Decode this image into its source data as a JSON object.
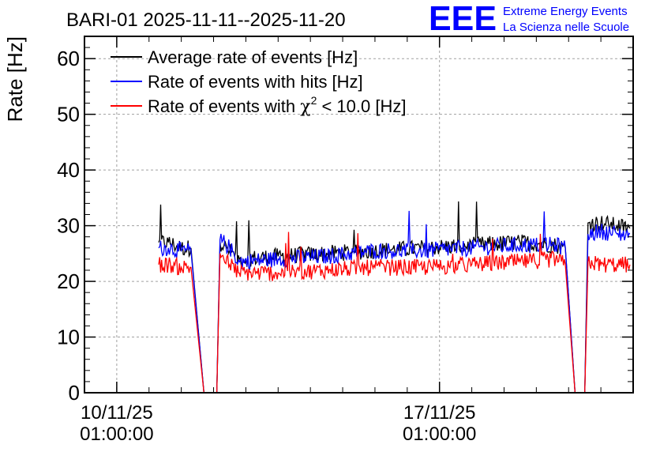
{
  "chart_data": {
    "type": "line",
    "title": "BARI-01 2025-11-11--2025-11-20",
    "ylabel": "Rate [Hz]",
    "xlabel": "",
    "ylim": [
      0,
      64
    ],
    "yticks": [
      0,
      10,
      20,
      30,
      40,
      50,
      60
    ],
    "xlim_days": [
      10.0,
      27.0
    ],
    "xticks": [
      {
        "day": 11.0,
        "label_date": "10/11/25",
        "label_time": "01:00:00"
      },
      {
        "day": 21.0,
        "label_date": "17/11/25",
        "label_time": "01:00:00"
      }
    ],
    "grid": true,
    "legend_position": "top-left",
    "legend": [
      {
        "key": "avg",
        "label": "Average rate of events [Hz]"
      },
      {
        "key": "hits",
        "label": "Rate of events with hits [Hz]"
      },
      {
        "key": "chi",
        "label_prefix": "Rate of events with ",
        "label_symbol": "χ",
        "label_sup": "2",
        "label_suffix": " < 10.0 [Hz]"
      }
    ],
    "series": [
      {
        "key": "avg",
        "name": "Average rate of events [Hz]",
        "color": "#000000",
        "points": [
          [
            12.3,
            27
          ],
          [
            12.6,
            27
          ],
          [
            13.0,
            26
          ],
          [
            13.3,
            26
          ],
          [
            13.7,
            0
          ],
          [
            14.1,
            0
          ],
          [
            14.2,
            27
          ],
          [
            14.5,
            25.5
          ],
          [
            14.8,
            24
          ],
          [
            16.0,
            24.5
          ],
          [
            17.5,
            25
          ],
          [
            19.0,
            25.5
          ],
          [
            20.5,
            26
          ],
          [
            22.0,
            26.5
          ],
          [
            23.5,
            27
          ],
          [
            24.6,
            26.5
          ],
          [
            24.9,
            26
          ],
          [
            25.2,
            0
          ],
          [
            25.5,
            0
          ],
          [
            25.6,
            30.5
          ],
          [
            26.0,
            30.5
          ],
          [
            26.5,
            30
          ],
          [
            26.9,
            29.5
          ]
        ]
      },
      {
        "key": "hits",
        "name": "Rate of events with hits [Hz]",
        "color": "#0000ff",
        "points": [
          [
            12.3,
            26
          ],
          [
            12.6,
            26
          ],
          [
            13.0,
            25.5
          ],
          [
            13.3,
            25.5
          ],
          [
            13.7,
            0
          ],
          [
            14.1,
            0
          ],
          [
            14.2,
            27.5
          ],
          [
            14.5,
            26
          ],
          [
            14.8,
            23.5
          ],
          [
            16.0,
            24
          ],
          [
            17.5,
            24.5
          ],
          [
            19.0,
            25.5
          ],
          [
            20.5,
            25.5
          ],
          [
            22.0,
            26
          ],
          [
            23.5,
            26.5
          ],
          [
            24.6,
            26.5
          ],
          [
            24.9,
            26
          ],
          [
            25.2,
            0
          ],
          [
            25.5,
            0
          ],
          [
            25.6,
            28.5
          ],
          [
            26.0,
            29
          ],
          [
            26.5,
            28.5
          ],
          [
            26.9,
            28.5
          ]
        ]
      },
      {
        "key": "chi",
        "name": "Rate of events with χ² < 10.0 [Hz]",
        "color": "#ff0000",
        "points": [
          [
            12.3,
            23
          ],
          [
            12.6,
            23
          ],
          [
            13.0,
            22.5
          ],
          [
            13.3,
            22.5
          ],
          [
            13.7,
            0
          ],
          [
            14.1,
            0
          ],
          [
            14.2,
            25
          ],
          [
            14.5,
            23
          ],
          [
            14.8,
            21.5
          ],
          [
            16.0,
            21.5
          ],
          [
            17.5,
            22
          ],
          [
            19.0,
            22.5
          ],
          [
            20.5,
            22.5
          ],
          [
            22.0,
            23
          ],
          [
            23.5,
            23.5
          ],
          [
            24.6,
            24
          ],
          [
            24.9,
            23
          ],
          [
            25.2,
            0
          ],
          [
            25.5,
            0
          ],
          [
            25.6,
            23.5
          ],
          [
            26.0,
            23
          ],
          [
            26.5,
            23
          ],
          [
            26.9,
            23
          ]
        ]
      }
    ]
  },
  "branding": {
    "logo_text": "EEE",
    "line1": "Extreme Energy Events",
    "line2": "La Scienza nelle Scuole",
    "color": "#0000ff"
  }
}
